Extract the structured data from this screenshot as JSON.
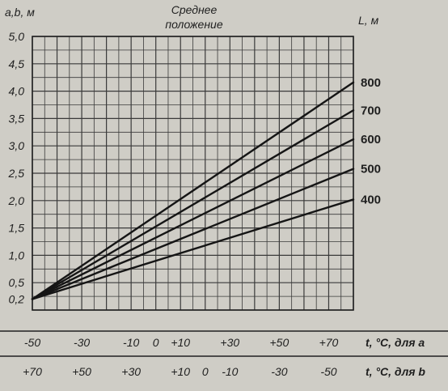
{
  "chart_data": {
    "type": "line",
    "title": "Среднее положение",
    "ylabel": "a,b, м",
    "legend_title": "L, м",
    "xlabel_a": "t, °C, для a",
    "xlabel_b": "t, °C, для b",
    "ylim": [
      0,
      5.0
    ],
    "xlim_a": [
      -50,
      80
    ],
    "x_ticks_a": [
      "-50",
      "-30",
      "-10",
      "0",
      "+10",
      "+30",
      "+50",
      "+70"
    ],
    "x_ticks_a_values": [
      -50,
      -30,
      -10,
      0,
      10,
      30,
      50,
      70
    ],
    "x_ticks_b": [
      "+70",
      "+50",
      "+30",
      "+10",
      "0",
      "-10",
      "-30",
      "-50"
    ],
    "x_ticks_b_values_as_a": [
      -50,
      -30,
      -10,
      10,
      20,
      30,
      50,
      70
    ],
    "y_ticks": [
      "5,0",
      "4,5",
      "4,0",
      "3,5",
      "3,0",
      "2,5",
      "2,0",
      "1,5",
      "1,0",
      "0,5",
      "0,2"
    ],
    "y_ticks_values": [
      5.0,
      4.5,
      4.0,
      3.5,
      3.0,
      2.5,
      2.0,
      1.5,
      1.0,
      0.5,
      0.2
    ],
    "grid": true,
    "series": [
      {
        "name": "800",
        "x": [
          -50,
          80
        ],
        "y": [
          0.2,
          4.16
        ]
      },
      {
        "name": "700",
        "x": [
          -50,
          80
        ],
        "y": [
          0.2,
          3.65
        ]
      },
      {
        "name": "600",
        "x": [
          -50,
          80
        ],
        "y": [
          0.2,
          3.12
        ]
      },
      {
        "name": "500",
        "x": [
          -50,
          80
        ],
        "y": [
          0.2,
          2.58
        ]
      },
      {
        "name": "400",
        "x": [
          -50,
          80
        ],
        "y": [
          0.2,
          2.02
        ]
      }
    ]
  }
}
